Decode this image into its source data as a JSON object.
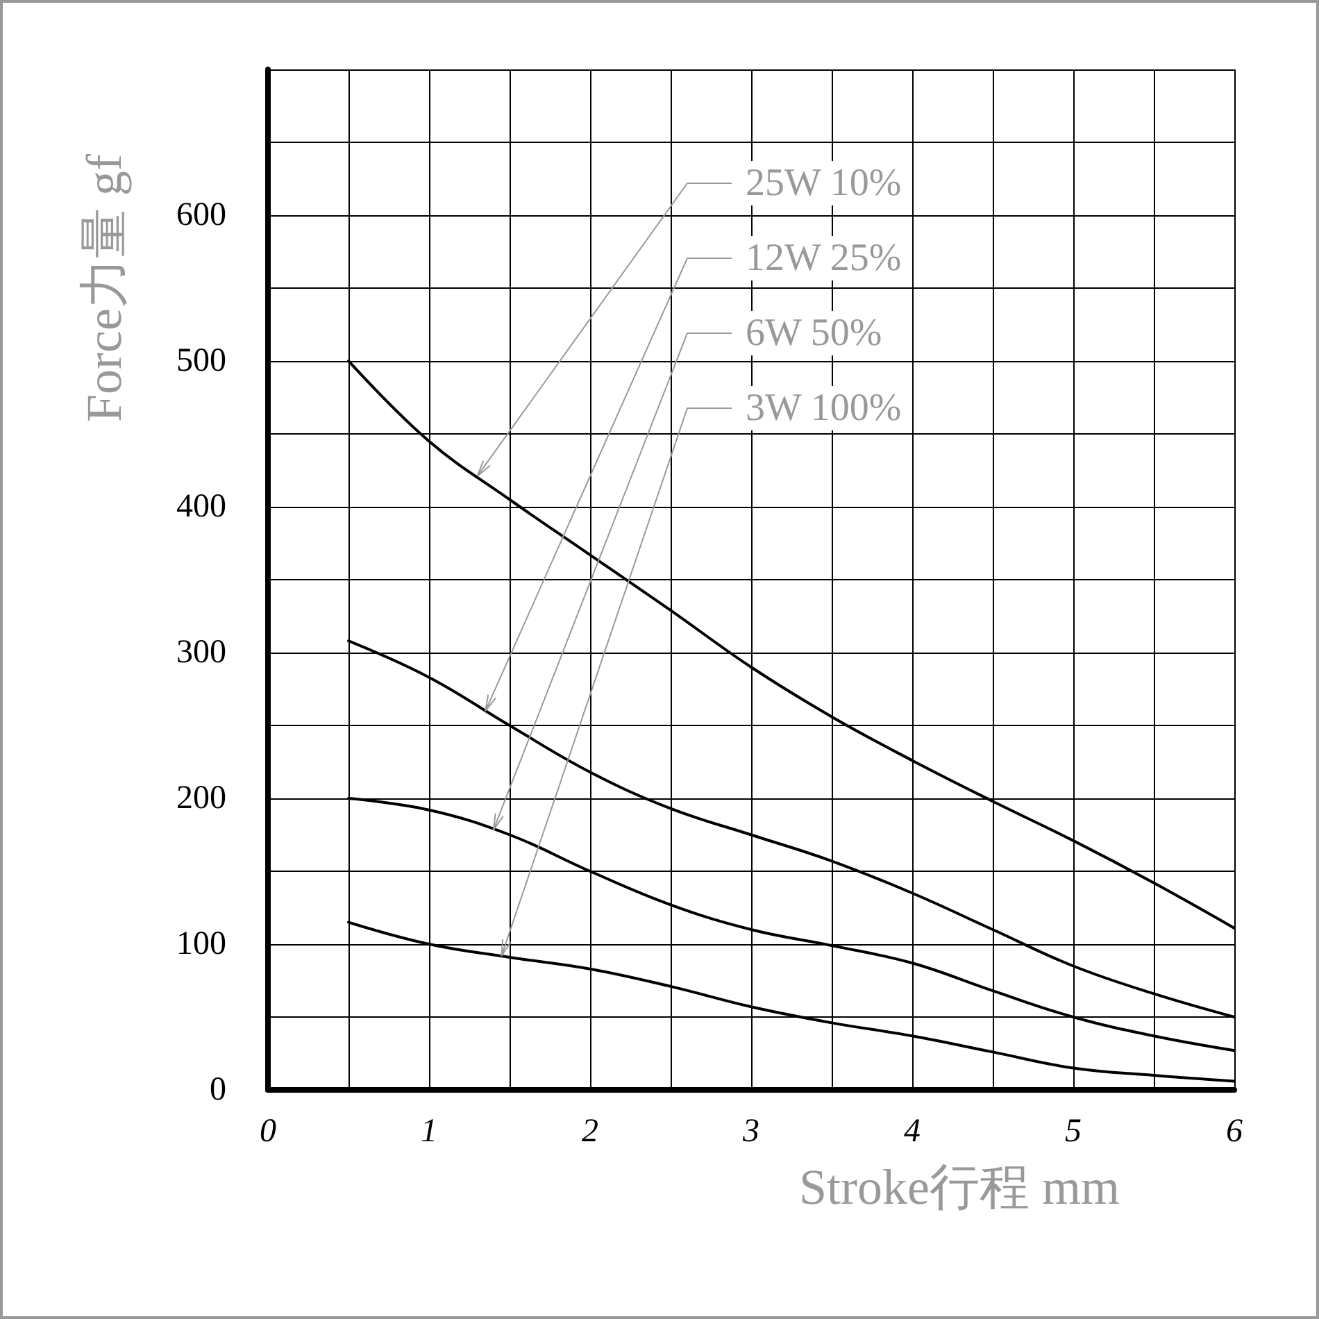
{
  "chart_data": {
    "type": "line",
    "xlabel": "Stroke行程 mm",
    "ylabel": "Force力量 gf",
    "x": [
      0.5,
      1,
      1.5,
      2,
      2.5,
      3,
      3.5,
      4,
      4.5,
      5,
      5.5,
      6
    ],
    "series": [
      {
        "name": "25W 10%",
        "color": "#000000",
        "values": [
          500,
          445,
          405,
          367,
          329,
          290,
          256,
          226,
          198,
          171,
          142,
          111
        ]
      },
      {
        "name": "12W 25%",
        "color": "#000000",
        "values": [
          308,
          283,
          250,
          218,
          193,
          175,
          157,
          135,
          110,
          85,
          66,
          50
        ]
      },
      {
        "name": "6W 50%",
        "color": "#000000",
        "values": [
          200,
          192,
          175,
          150,
          127,
          110,
          99,
          87,
          68,
          50,
          37,
          27
        ]
      },
      {
        "name": "3W 100%",
        "color": "#000000",
        "values": [
          115,
          100,
          91,
          83,
          71,
          57,
          46,
          37,
          26,
          15,
          10,
          6
        ]
      }
    ],
    "xlim": [
      0,
      6
    ],
    "xticks": [
      0,
      {
        "value": 0.5,
        "label": null
      },
      1,
      {
        "value": 1.5,
        "label": null
      },
      2,
      {
        "value": 2.5,
        "label": null
      },
      3,
      {
        "value": 3.5,
        "label": null
      },
      4,
      {
        "value": 4.5,
        "label": null
      },
      5,
      {
        "value": 5.5,
        "label": null
      },
      6
    ],
    "ylim": [
      0,
      700
    ],
    "yticks": [
      0,
      {
        "value": 50,
        "label": null
      },
      100,
      {
        "value": 150,
        "label": null
      },
      200,
      {
        "value": 250,
        "label": null
      },
      300,
      {
        "value": 350,
        "label": null
      },
      400,
      {
        "value": 450,
        "label": null
      },
      500,
      {
        "value": 550,
        "label": null
      },
      600,
      {
        "value": 650,
        "label": null
      },
      {
        "value": 700,
        "label": null
      }
    ],
    "grid": true,
    "legend": false,
    "marker": "none",
    "line_style": "solid"
  }
}
